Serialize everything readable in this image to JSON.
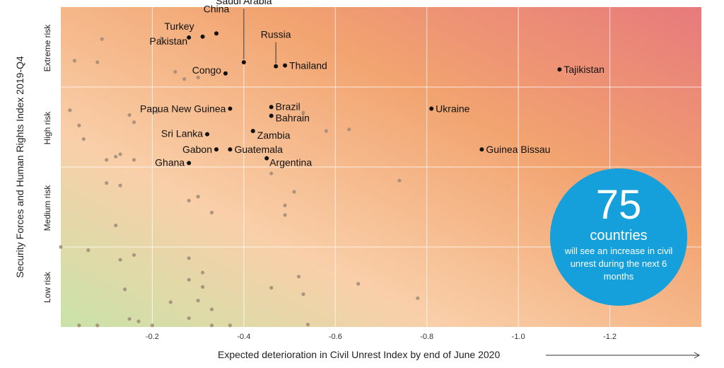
{
  "chart_data": {
    "type": "scatter",
    "title": "",
    "xlabel": "Expected deterioration in Civil Unrest Index by end of June 2020",
    "ylabel": "Security Forces and Human Rights Index 2019-Q4",
    "xlim": [
      0,
      -1.4
    ],
    "xticks": [
      -0.2,
      -0.4,
      -0.6,
      -0.8,
      -1.0,
      -1.2
    ],
    "xtick_labels": [
      "-0.2",
      "-0.4",
      "-0.6",
      "-0.8",
      "-1.0",
      "-1.2"
    ],
    "risk_bands": [
      "Extreme risk",
      "High risk",
      "Medium risk",
      "Low risk"
    ],
    "ylim": [
      0,
      4
    ],
    "grid": true,
    "background": "gradient from green (bottom-left) through peach/orange to red (top-right)",
    "colors": {
      "gradient_green": "#c9e3a8",
      "gradient_peach": "#f9cfa9",
      "gradient_orange": "#f2a470",
      "gradient_red": "#e77a7c",
      "labeled_point": "#111111",
      "unlabeled_point": "#a08a77",
      "callout": "#16a0db"
    },
    "labeled_points": [
      {
        "name": "Saudi Arabia",
        "x": -0.4,
        "y": 3.31
      },
      {
        "name": "China",
        "x": -0.34,
        "y": 3.67
      },
      {
        "name": "Turkey",
        "x": -0.31,
        "y": 3.63
      },
      {
        "name": "Pakistan",
        "x": -0.28,
        "y": 3.62
      },
      {
        "name": "Russia",
        "x": -0.47,
        "y": 3.26
      },
      {
        "name": "Thailand",
        "x": -0.49,
        "y": 3.27
      },
      {
        "name": "Congo",
        "x": -0.36,
        "y": 3.17
      },
      {
        "name": "Tajikistan",
        "x": -1.09,
        "y": 3.22
      },
      {
        "name": "Papua New Guinea",
        "x": -0.37,
        "y": 2.73
      },
      {
        "name": "Brazil",
        "x": -0.46,
        "y": 2.75
      },
      {
        "name": "Bahrain",
        "x": -0.46,
        "y": 2.64
      },
      {
        "name": "Ukraine",
        "x": -0.81,
        "y": 2.73
      },
      {
        "name": "Zambia",
        "x": -0.42,
        "y": 2.45
      },
      {
        "name": "Sri Lanka",
        "x": -0.32,
        "y": 2.41
      },
      {
        "name": "Gabon",
        "x": -0.34,
        "y": 2.22
      },
      {
        "name": "Guatemala",
        "x": -0.37,
        "y": 2.22
      },
      {
        "name": "Guinea Bissau",
        "x": -0.92,
        "y": 2.22
      },
      {
        "name": "Argentina",
        "x": -0.45,
        "y": 2.11
      },
      {
        "name": "Ghana",
        "x": -0.28,
        "y": 2.05
      }
    ],
    "unlabeled_points": [
      {
        "x": -0.09,
        "y": 3.6
      },
      {
        "x": -0.03,
        "y": 3.33
      },
      {
        "x": -0.08,
        "y": 3.31
      },
      {
        "x": -0.22,
        "y": 3.61
      },
      {
        "x": -0.25,
        "y": 3.19
      },
      {
        "x": -0.27,
        "y": 3.1
      },
      {
        "x": -0.3,
        "y": 3.12
      },
      {
        "x": -0.02,
        "y": 2.71
      },
      {
        "x": -0.15,
        "y": 2.65
      },
      {
        "x": -0.16,
        "y": 2.56
      },
      {
        "x": -0.21,
        "y": 2.69
      },
      {
        "x": -0.04,
        "y": 2.52
      },
      {
        "x": -0.05,
        "y": 2.35
      },
      {
        "x": -0.53,
        "y": 2.68
      },
      {
        "x": -0.58,
        "y": 2.45
      },
      {
        "x": -0.63,
        "y": 2.47
      },
      {
        "x": -0.1,
        "y": 2.09
      },
      {
        "x": -0.12,
        "y": 2.13
      },
      {
        "x": -0.13,
        "y": 2.16
      },
      {
        "x": -0.16,
        "y": 2.09
      },
      {
        "x": -0.46,
        "y": 1.92
      },
      {
        "x": -0.1,
        "y": 1.8
      },
      {
        "x": -0.13,
        "y": 1.77
      },
      {
        "x": -0.74,
        "y": 1.83
      },
      {
        "x": -0.51,
        "y": 1.69
      },
      {
        "x": -0.28,
        "y": 1.58
      },
      {
        "x": -0.3,
        "y": 1.63
      },
      {
        "x": -0.49,
        "y": 1.52
      },
      {
        "x": -0.33,
        "y": 1.43
      },
      {
        "x": -0.49,
        "y": 1.4
      },
      {
        "x": -0.12,
        "y": 1.27
      },
      {
        "x": 0.0,
        "y": 1.0
      },
      {
        "x": -0.06,
        "y": 0.96
      },
      {
        "x": -0.16,
        "y": 0.9
      },
      {
        "x": -0.13,
        "y": 0.84
      },
      {
        "x": -0.28,
        "y": 0.86
      },
      {
        "x": -0.31,
        "y": 0.68
      },
      {
        "x": -0.52,
        "y": 0.63
      },
      {
        "x": -0.28,
        "y": 0.59
      },
      {
        "x": -0.65,
        "y": 0.54
      },
      {
        "x": -0.31,
        "y": 0.5
      },
      {
        "x": -0.46,
        "y": 0.49
      },
      {
        "x": -0.14,
        "y": 0.47
      },
      {
        "x": -0.53,
        "y": 0.41
      },
      {
        "x": -0.3,
        "y": 0.33
      },
      {
        "x": -0.24,
        "y": 0.31
      },
      {
        "x": -0.78,
        "y": 0.36
      },
      {
        "x": -0.33,
        "y": 0.22
      },
      {
        "x": -0.28,
        "y": 0.11
      },
      {
        "x": -0.15,
        "y": 0.1
      },
      {
        "x": -0.17,
        "y": 0.07
      },
      {
        "x": -0.04,
        "y": 0.02
      },
      {
        "x": -0.08,
        "y": 0.02
      },
      {
        "x": -0.2,
        "y": 0.02
      },
      {
        "x": -0.33,
        "y": 0.02
      },
      {
        "x": -0.37,
        "y": 0.02
      },
      {
        "x": -0.54,
        "y": 0.03
      }
    ]
  },
  "callout": {
    "number": "75",
    "word": "countries",
    "text": "will see an increase in civil unrest during the next 6 months"
  }
}
